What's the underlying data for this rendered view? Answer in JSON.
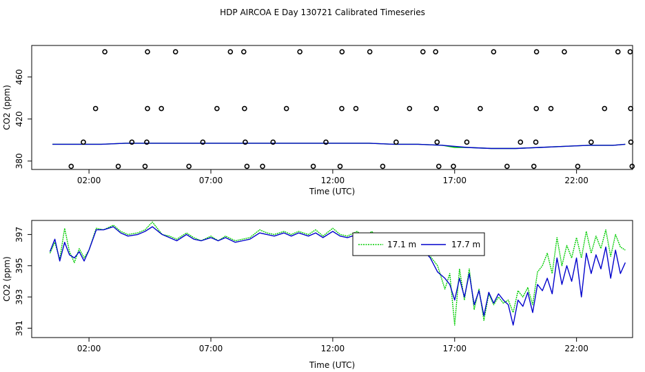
{
  "page": {
    "title": "HDP AIRCOA E  Day 130721  Calibrated Timeseries"
  },
  "colors": {
    "green": "#00cc00",
    "blue": "#0000cc",
    "axis": "#000000"
  },
  "chart_data": [
    {
      "type": "scatter",
      "title": "",
      "xlabel": "Time (UTC)",
      "ylabel": "CO2 (ppm)",
      "x_ticks": [
        "02:00",
        "07:00",
        "12:00",
        "17:00",
        "22:00"
      ],
      "x_tick_values": [
        2,
        7,
        12,
        17,
        22
      ],
      "y_ticks": [
        "380",
        "420",
        "460"
      ],
      "y_tick_values": [
        380,
        420,
        460
      ],
      "xlim": [
        -0.35,
        24.3
      ],
      "ylim": [
        372,
        490
      ],
      "grid": false,
      "calibration_points": [
        {
          "x": 1.27,
          "y": 375
        },
        {
          "x": 1.77,
          "y": 398
        },
        {
          "x": 2.27,
          "y": 430
        },
        {
          "x": 2.65,
          "y": 484
        },
        {
          "x": 3.2,
          "y": 375
        },
        {
          "x": 3.76,
          "y": 398
        },
        {
          "x": 4.3,
          "y": 375
        },
        {
          "x": 4.37,
          "y": 398
        },
        {
          "x": 4.4,
          "y": 430
        },
        {
          "x": 4.4,
          "y": 484
        },
        {
          "x": 4.97,
          "y": 430
        },
        {
          "x": 5.55,
          "y": 484
        },
        {
          "x": 6.1,
          "y": 375
        },
        {
          "x": 6.67,
          "y": 398
        },
        {
          "x": 7.25,
          "y": 430
        },
        {
          "x": 7.8,
          "y": 484
        },
        {
          "x": 8.35,
          "y": 484
        },
        {
          "x": 8.38,
          "y": 430
        },
        {
          "x": 8.41,
          "y": 398
        },
        {
          "x": 8.48,
          "y": 375
        },
        {
          "x": 9.12,
          "y": 375
        },
        {
          "x": 9.55,
          "y": 398
        },
        {
          "x": 10.1,
          "y": 430
        },
        {
          "x": 10.65,
          "y": 484
        },
        {
          "x": 11.2,
          "y": 375
        },
        {
          "x": 11.72,
          "y": 398
        },
        {
          "x": 12.3,
          "y": 375
        },
        {
          "x": 12.37,
          "y": 430
        },
        {
          "x": 12.38,
          "y": 484
        },
        {
          "x": 12.95,
          "y": 430
        },
        {
          "x": 13.52,
          "y": 484
        },
        {
          "x": 14.05,
          "y": 375
        },
        {
          "x": 14.6,
          "y": 398
        },
        {
          "x": 15.15,
          "y": 430
        },
        {
          "x": 15.7,
          "y": 484
        },
        {
          "x": 16.22,
          "y": 484
        },
        {
          "x": 16.25,
          "y": 430
        },
        {
          "x": 16.28,
          "y": 398
        },
        {
          "x": 16.35,
          "y": 375
        },
        {
          "x": 16.95,
          "y": 375
        },
        {
          "x": 17.5,
          "y": 398
        },
        {
          "x": 18.05,
          "y": 430
        },
        {
          "x": 18.6,
          "y": 484
        },
        {
          "x": 19.15,
          "y": 375
        },
        {
          "x": 19.7,
          "y": 398
        },
        {
          "x": 20.25,
          "y": 375
        },
        {
          "x": 20.33,
          "y": 398
        },
        {
          "x": 20.35,
          "y": 430
        },
        {
          "x": 20.36,
          "y": 484
        },
        {
          "x": 20.95,
          "y": 430
        },
        {
          "x": 21.5,
          "y": 484
        },
        {
          "x": 22.05,
          "y": 375
        },
        {
          "x": 22.6,
          "y": 398
        },
        {
          "x": 23.15,
          "y": 430
        },
        {
          "x": 23.7,
          "y": 484
        },
        {
          "x": 24.2,
          "y": 484
        },
        {
          "x": 24.22,
          "y": 430
        },
        {
          "x": 24.23,
          "y": 398
        },
        {
          "x": 24.28,
          "y": 375
        }
      ],
      "series": [
        {
          "color": "#00cc00",
          "x": [
            0.5,
            1.5,
            2.5,
            3.5,
            4.5,
            5.5,
            6.5,
            7.5,
            8.5,
            9.5,
            10.5,
            11.5,
            12.5,
            13.5,
            14.5,
            15.5,
            16.5,
            17.0,
            17.5,
            18.5,
            19.5,
            20.5,
            21.5,
            22.5,
            23.5,
            24.0
          ],
          "y": [
            396,
            396,
            396,
            397,
            397,
            397,
            397,
            397,
            397,
            397,
            397,
            397,
            397,
            397,
            396,
            396,
            395,
            393,
            393,
            392,
            392,
            393,
            394,
            395,
            395,
            396
          ]
        },
        {
          "color": "#0000cc",
          "x": [
            0.5,
            1.5,
            2.5,
            3.5,
            4.5,
            5.5,
            6.5,
            7.5,
            8.5,
            9.5,
            10.5,
            11.5,
            12.5,
            13.5,
            14.5,
            15.5,
            16.5,
            17.0,
            17.5,
            18.5,
            19.5,
            20.5,
            21.5,
            22.5,
            23.5,
            24.0
          ],
          "y": [
            396,
            396,
            396,
            397,
            397,
            397,
            397,
            397,
            397,
            397,
            397,
            397,
            397,
            397,
            396,
            396,
            395,
            394,
            393,
            392,
            392,
            393,
            394,
            395,
            395,
            396
          ]
        }
      ]
    },
    {
      "type": "line",
      "title": "",
      "xlabel": "Time (UTC)",
      "ylabel": "CO2 (ppm)",
      "x_ticks": [
        "02:00",
        "07:00",
        "12:00",
        "17:00",
        "22:00"
      ],
      "x_tick_values": [
        2,
        7,
        12,
        17,
        22
      ],
      "y_ticks": [
        "391",
        "393",
        "395",
        "397"
      ],
      "y_tick_values": [
        391,
        393,
        395,
        397
      ],
      "xlim": [
        -0.35,
        24.3
      ],
      "ylim": [
        390.4,
        397.9
      ],
      "grid": false,
      "legend": {
        "placement": "top-center"
      },
      "series": [
        {
          "name": "17.1 m",
          "color": "#00cc00",
          "x": [
            0.4,
            0.6,
            0.8,
            1.0,
            1.2,
            1.4,
            1.6,
            1.8,
            2.0,
            2.3,
            2.6,
            3.0,
            3.3,
            3.6,
            4.0,
            4.3,
            4.6,
            5.0,
            5.3,
            5.6,
            6.0,
            6.3,
            6.6,
            7.0,
            7.3,
            7.6,
            8.0,
            8.3,
            8.6,
            9.0,
            9.3,
            9.6,
            10.0,
            10.3,
            10.6,
            11.0,
            11.3,
            11.6,
            12.0,
            12.3,
            12.6,
            13.0,
            13.3,
            13.6,
            14.0,
            14.3,
            14.6,
            15.0,
            15.3,
            15.6,
            16.0,
            16.3,
            16.6,
            16.8,
            17.0,
            17.2,
            17.4,
            17.6,
            17.8,
            18.0,
            18.2,
            18.4,
            18.6,
            18.8,
            19.0,
            19.2,
            19.4,
            19.6,
            19.8,
            20.0,
            20.2,
            20.4,
            20.6,
            20.8,
            21.0,
            21.2,
            21.4,
            21.6,
            21.8,
            22.0,
            22.2,
            22.4,
            22.6,
            22.8,
            23.0,
            23.2,
            23.4,
            23.6,
            23.8,
            24.0
          ],
          "y": [
            395.8,
            396.5,
            395.4,
            397.4,
            395.9,
            395.2,
            396.1,
            395.5,
            396.0,
            397.4,
            397.3,
            397.6,
            397.2,
            397.0,
            397.1,
            397.3,
            397.8,
            397.0,
            396.9,
            396.7,
            397.1,
            396.8,
            396.6,
            396.9,
            396.6,
            396.9,
            396.6,
            396.7,
            396.8,
            397.3,
            397.1,
            397.0,
            397.2,
            397.0,
            397.2,
            397.0,
            397.3,
            396.9,
            397.4,
            397.0,
            396.9,
            397.2,
            396.8,
            397.2,
            396.5,
            397.0,
            396.3,
            396.6,
            396.0,
            396.4,
            395.6,
            395.0,
            393.5,
            394.5,
            391.2,
            394.8,
            392.8,
            394.8,
            392.2,
            393.5,
            391.5,
            393.2,
            392.5,
            393.0,
            392.6,
            392.8,
            392.0,
            393.4,
            393.0,
            393.6,
            392.5,
            394.6,
            395.0,
            395.8,
            394.5,
            396.8,
            395.0,
            396.3,
            395.5,
            396.8,
            395.5,
            397.2,
            395.8,
            396.9,
            396.1,
            397.3,
            395.6,
            397.0,
            396.2,
            396.0
          ]
        },
        {
          "name": "17.7 m",
          "color": "#0000cc",
          "x": [
            0.4,
            0.6,
            0.8,
            1.0,
            1.2,
            1.4,
            1.6,
            1.8,
            2.0,
            2.3,
            2.6,
            3.0,
            3.3,
            3.6,
            4.0,
            4.3,
            4.6,
            5.0,
            5.3,
            5.6,
            6.0,
            6.3,
            6.6,
            7.0,
            7.3,
            7.6,
            8.0,
            8.3,
            8.6,
            9.0,
            9.3,
            9.6,
            10.0,
            10.3,
            10.6,
            11.0,
            11.3,
            11.6,
            12.0,
            12.3,
            12.6,
            13.0,
            13.3,
            13.6,
            14.0,
            14.3,
            14.6,
            15.0,
            15.3,
            15.6,
            16.0,
            16.3,
            16.6,
            16.8,
            17.0,
            17.2,
            17.4,
            17.6,
            17.8,
            18.0,
            18.2,
            18.4,
            18.6,
            18.8,
            19.0,
            19.2,
            19.4,
            19.6,
            19.8,
            20.0,
            20.2,
            20.4,
            20.6,
            20.8,
            21.0,
            21.2,
            21.4,
            21.6,
            21.8,
            22.0,
            22.2,
            22.4,
            22.6,
            22.8,
            23.0,
            23.2,
            23.4,
            23.6,
            23.8,
            24.0
          ],
          "y": [
            395.9,
            396.7,
            395.3,
            396.5,
            395.7,
            395.5,
            395.9,
            395.3,
            396.0,
            397.3,
            397.3,
            397.5,
            397.1,
            396.9,
            397.0,
            397.2,
            397.5,
            397.0,
            396.8,
            396.6,
            397.0,
            396.7,
            396.6,
            396.8,
            396.6,
            396.8,
            396.5,
            396.6,
            396.7,
            397.1,
            397.0,
            396.9,
            397.1,
            396.9,
            397.1,
            396.9,
            397.1,
            396.8,
            397.2,
            396.9,
            396.8,
            397.0,
            396.7,
            397.0,
            396.4,
            396.8,
            396.2,
            396.5,
            395.9,
            396.2,
            395.5,
            394.6,
            394.2,
            393.8,
            392.8,
            394.2,
            393.0,
            394.5,
            392.5,
            393.4,
            391.8,
            393.3,
            392.6,
            393.2,
            392.8,
            392.5,
            391.2,
            392.8,
            392.4,
            393.3,
            392.0,
            393.8,
            393.4,
            394.2,
            393.2,
            395.5,
            393.8,
            395.0,
            394.0,
            395.5,
            393.0,
            395.8,
            394.5,
            395.7,
            394.8,
            396.2,
            394.2,
            396.0,
            394.5,
            395.2
          ]
        }
      ]
    }
  ]
}
